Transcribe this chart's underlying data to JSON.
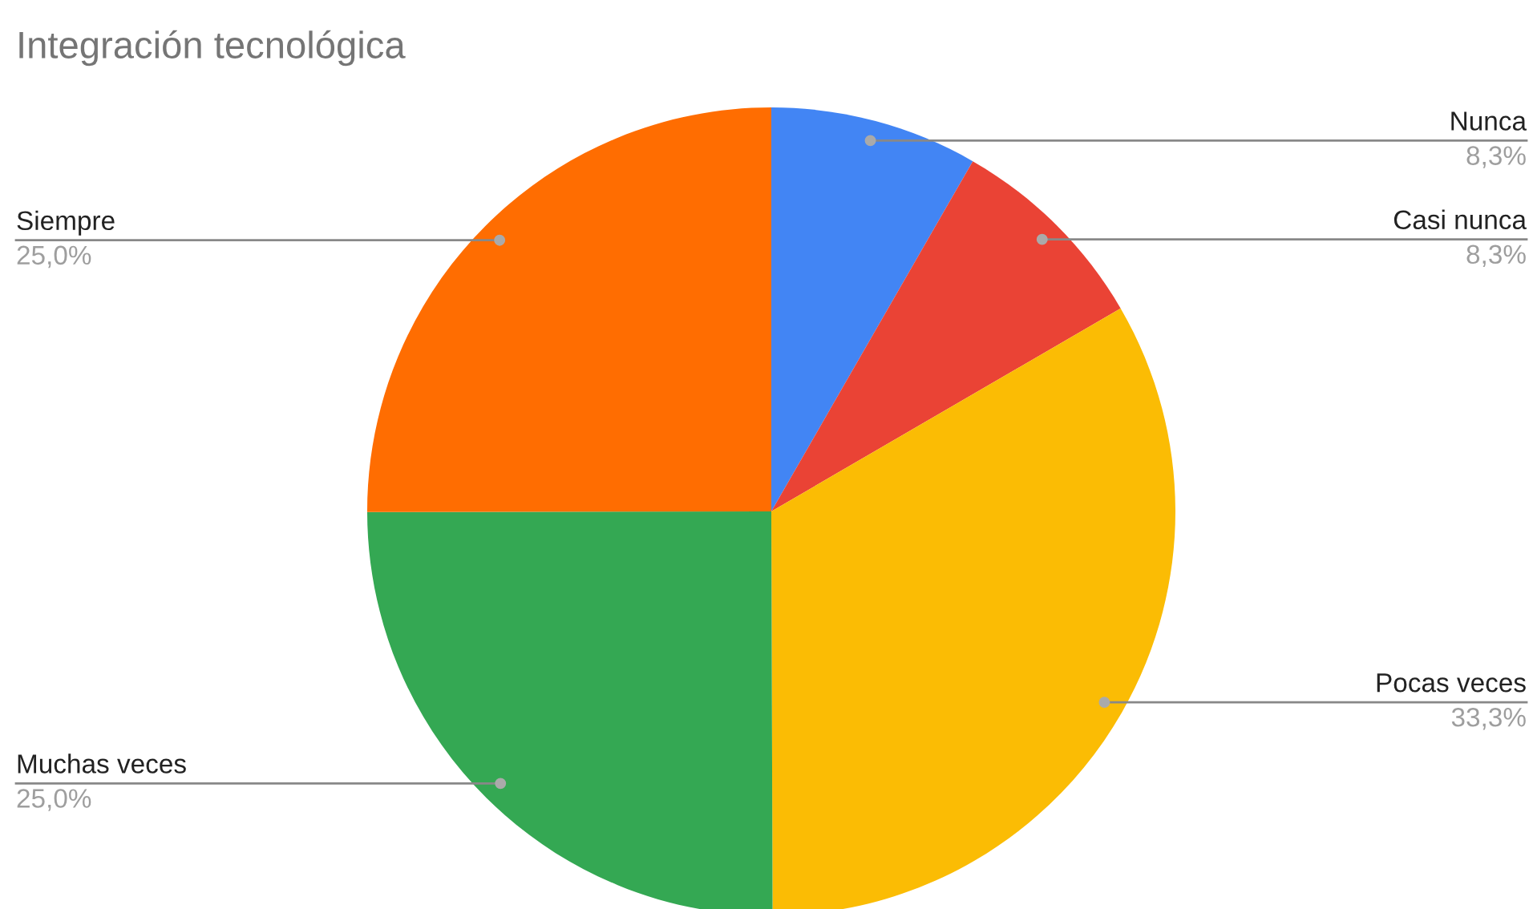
{
  "chart_data": {
    "type": "pie",
    "title": "Integración tecnológica",
    "categories": [
      "Nunca",
      "Casi nunca",
      "Pocas veces",
      "Muchas veces",
      "Siempre"
    ],
    "values": [
      8.3,
      8.3,
      33.3,
      25.0,
      25.0
    ],
    "value_labels": [
      "8,3%",
      "8,3%",
      "33,3%",
      "25,0%",
      "25,0%"
    ],
    "colors": [
      "#4285f4",
      "#ea4335",
      "#fbbc04",
      "#34a853",
      "#ff6d01"
    ]
  }
}
